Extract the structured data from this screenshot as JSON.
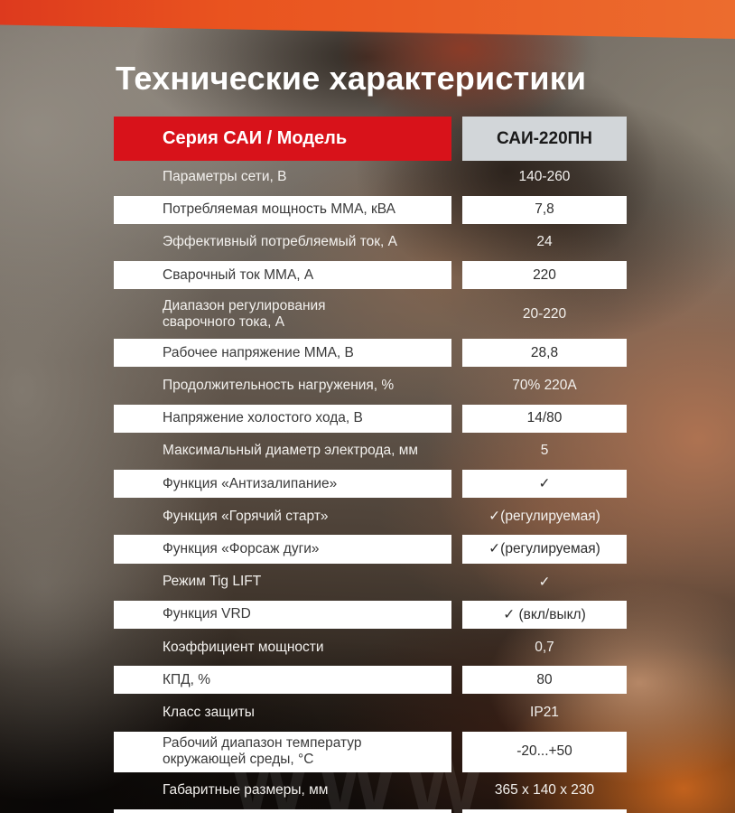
{
  "title": "Технические характеристики",
  "watermark": "WWW",
  "colors": {
    "banner_gradient_left": "#dd3a1e",
    "banner_gradient_right": "#ec6c2e",
    "header_red": "#d8121a",
    "header_cell_gray": "#d2d6d9",
    "row_white": "#ffffff"
  },
  "table": {
    "header": {
      "series_label": "Серия САИ / Модель",
      "model": "САИ-220ПН"
    },
    "rows": [
      {
        "label": "Параметры сети, В",
        "value": "140-260"
      },
      {
        "label": "Потребляемая мощность ММА, кВА",
        "value": "7,8"
      },
      {
        "label": "Эффективный потребляемый ток, А",
        "value": "24"
      },
      {
        "label": "Сварочный ток ММА, А",
        "value": "220"
      },
      {
        "label": "Диапазон регулирования",
        "label2": "сварочного тока, А",
        "value": "20-220"
      },
      {
        "label": "Рабочее напряжение ММА, В",
        "value": "28,8"
      },
      {
        "label": "Продолжительность нагружения, %",
        "value": "70% 220А"
      },
      {
        "label": "Напряжение холостого хода, В",
        "value": "14/80"
      },
      {
        "label": "Максимальный диаметр электрода, мм",
        "value": "5"
      },
      {
        "label": "Функция «Антизалипание»",
        "value": "✓"
      },
      {
        "label": "Функция «Горячий старт»",
        "value": "✓(регулируемая)"
      },
      {
        "label": "Функция «Форсаж дуги»",
        "value": "✓(регулируемая)"
      },
      {
        "label": "Режим Tig LIFT",
        "value": "✓"
      },
      {
        "label": "Функция VRD",
        "value": "✓ (вкл/выкл)"
      },
      {
        "label": "Коэффициент мощности",
        "value": "0,7"
      },
      {
        "label": "КПД, %",
        "value": "80"
      },
      {
        "label": "Класс защиты",
        "value": "IP21"
      },
      {
        "label": "Рабочий диапазон температур",
        "label2": "окружающей среды, °С",
        "value": "-20...+50"
      },
      {
        "label": "Габаритные размеры, мм",
        "value": "365 x 140 x 230"
      },
      {
        "label": "",
        "value": ""
      }
    ]
  }
}
